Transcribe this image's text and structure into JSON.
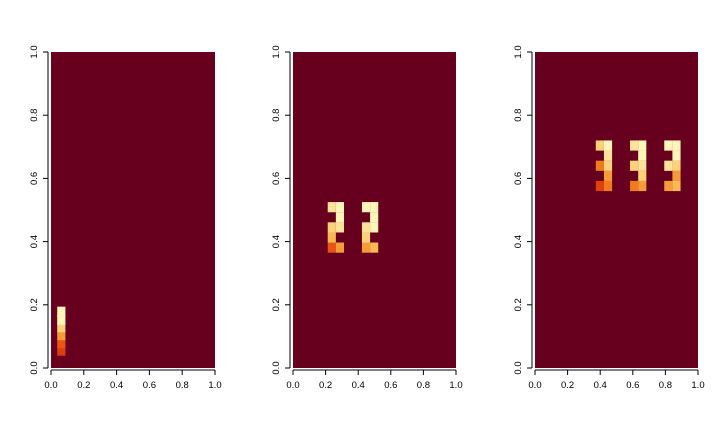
{
  "chart_data": [
    {
      "type": "heatmap",
      "title": "",
      "xlabel": "",
      "ylabel": "",
      "xlim": [
        0,
        1
      ],
      "ylim": [
        0,
        1
      ],
      "x_ticks": [
        "0.0",
        "0.2",
        "0.4",
        "0.6",
        "0.8",
        "1.0"
      ],
      "y_ticks": [
        "0.0",
        "0.2",
        "0.4",
        "0.6",
        "0.8",
        "1.0"
      ],
      "cell_width": 0.05,
      "cell_height": 0.0322,
      "grid": false,
      "cells": [
        {
          "x": 0.063,
          "y": 0.055,
          "color": "#d84010"
        },
        {
          "x": 0.063,
          "y": 0.079,
          "color": "#e85515"
        },
        {
          "x": 0.063,
          "y": 0.104,
          "color": "#f49b3a"
        },
        {
          "x": 0.063,
          "y": 0.129,
          "color": "#fbd27a"
        },
        {
          "x": 0.063,
          "y": 0.153,
          "color": "#fff5b8"
        },
        {
          "x": 0.063,
          "y": 0.178,
          "color": "#fff5b8"
        }
      ]
    },
    {
      "type": "heatmap",
      "title": "",
      "xlabel": "",
      "ylabel": "",
      "xlim": [
        0,
        1
      ],
      "ylim": [
        0,
        1
      ],
      "x_ticks": [
        "0.0",
        "0.2",
        "0.4",
        "0.6",
        "0.8",
        "1.0"
      ],
      "y_ticks": [
        "0.0",
        "0.2",
        "0.4",
        "0.6",
        "0.8",
        "1.0"
      ],
      "cell_width": 0.05,
      "cell_height": 0.0322,
      "grid": false,
      "cells": [
        {
          "x": 0.238,
          "y": 0.381,
          "color": "#e85515"
        },
        {
          "x": 0.288,
          "y": 0.381,
          "color": "#f49b3a"
        },
        {
          "x": 0.238,
          "y": 0.413,
          "color": "#f8b855"
        },
        {
          "x": 0.238,
          "y": 0.445,
          "color": "#fbd27a"
        },
        {
          "x": 0.288,
          "y": 0.445,
          "color": "#fde29a"
        },
        {
          "x": 0.288,
          "y": 0.477,
          "color": "#fff5b8"
        },
        {
          "x": 0.238,
          "y": 0.509,
          "color": "#fde29a"
        },
        {
          "x": 0.288,
          "y": 0.509,
          "color": "#fff5b8"
        },
        {
          "x": 0.448,
          "y": 0.381,
          "color": "#f49b3a"
        },
        {
          "x": 0.498,
          "y": 0.381,
          "color": "#f8b855"
        },
        {
          "x": 0.448,
          "y": 0.413,
          "color": "#fbd27a"
        },
        {
          "x": 0.448,
          "y": 0.445,
          "color": "#fde29a"
        },
        {
          "x": 0.498,
          "y": 0.445,
          "color": "#fff5b8"
        },
        {
          "x": 0.498,
          "y": 0.477,
          "color": "#fff5b8"
        },
        {
          "x": 0.448,
          "y": 0.509,
          "color": "#fff5b8"
        },
        {
          "x": 0.498,
          "y": 0.509,
          "color": "#fff5b8"
        }
      ]
    },
    {
      "type": "heatmap",
      "title": "",
      "xlabel": "",
      "ylabel": "",
      "xlim": [
        0,
        1
      ],
      "ylim": [
        0,
        1
      ],
      "x_ticks": [
        "0.0",
        "0.2",
        "0.4",
        "0.6",
        "0.8",
        "1.0"
      ],
      "y_ticks": [
        "0.0",
        "0.2",
        "0.4",
        "0.6",
        "0.8",
        "1.0"
      ],
      "cell_width": 0.05,
      "cell_height": 0.0322,
      "grid": false,
      "cells": [
        {
          "x": 0.398,
          "y": 0.576,
          "color": "#e03f10"
        },
        {
          "x": 0.448,
          "y": 0.576,
          "color": "#f07a20"
        },
        {
          "x": 0.448,
          "y": 0.608,
          "color": "#f49b3a"
        },
        {
          "x": 0.398,
          "y": 0.64,
          "color": "#f07a20"
        },
        {
          "x": 0.448,
          "y": 0.64,
          "color": "#fbd27a"
        },
        {
          "x": 0.448,
          "y": 0.672,
          "color": "#fde29a"
        },
        {
          "x": 0.398,
          "y": 0.704,
          "color": "#fbd27a"
        },
        {
          "x": 0.448,
          "y": 0.704,
          "color": "#fff5b8"
        },
        {
          "x": 0.608,
          "y": 0.576,
          "color": "#f07a20"
        },
        {
          "x": 0.658,
          "y": 0.576,
          "color": "#f49b3a"
        },
        {
          "x": 0.658,
          "y": 0.608,
          "color": "#fbd27a"
        },
        {
          "x": 0.608,
          "y": 0.64,
          "color": "#fbd27a"
        },
        {
          "x": 0.658,
          "y": 0.64,
          "color": "#fde29a"
        },
        {
          "x": 0.658,
          "y": 0.672,
          "color": "#fff5b8"
        },
        {
          "x": 0.608,
          "y": 0.704,
          "color": "#fde29a"
        },
        {
          "x": 0.658,
          "y": 0.704,
          "color": "#fff5b8"
        },
        {
          "x": 0.818,
          "y": 0.576,
          "color": "#f49b3a"
        },
        {
          "x": 0.868,
          "y": 0.576,
          "color": "#f8b855"
        },
        {
          "x": 0.868,
          "y": 0.608,
          "color": "#f49b3a"
        },
        {
          "x": 0.818,
          "y": 0.64,
          "color": "#fde29a"
        },
        {
          "x": 0.868,
          "y": 0.64,
          "color": "#fbd27a"
        },
        {
          "x": 0.868,
          "y": 0.672,
          "color": "#fff5b8"
        },
        {
          "x": 0.818,
          "y": 0.704,
          "color": "#fff5b8"
        },
        {
          "x": 0.868,
          "y": 0.704,
          "color": "#fff5b8"
        }
      ]
    }
  ],
  "colors": {
    "background": "#67001f",
    "axis": "#000000",
    "page": "#ffffff"
  }
}
